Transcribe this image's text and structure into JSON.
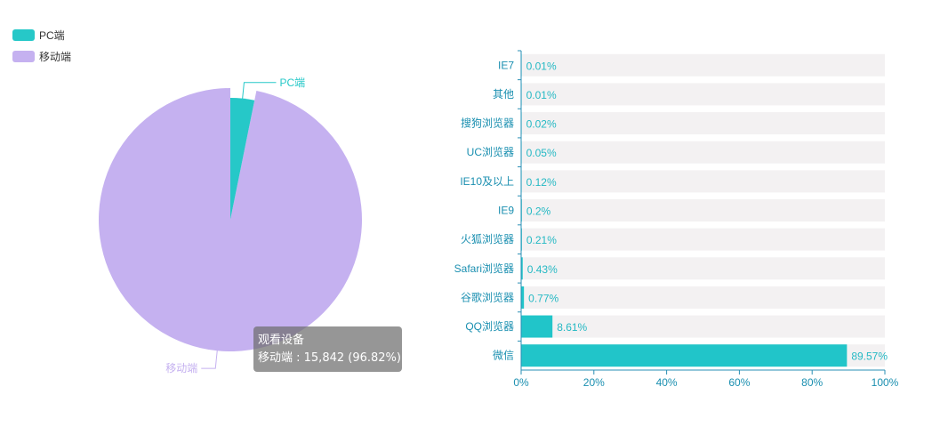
{
  "colors": {
    "pc": "#26c8c8",
    "mobile": "#c5b1f0",
    "bar": "#21c5c9",
    "bar_track": "#f3f1f2",
    "axis": "#2a8fb5",
    "category_text": "#1a8fb0",
    "value_text": "#25b9c4"
  },
  "legend": [
    {
      "label": "PC端",
      "color": "#26c8c8"
    },
    {
      "label": "移动端",
      "color": "#c5b1f0"
    }
  ],
  "tooltip": {
    "title": "观看设备",
    "line": "移动端 : 15,842 (96.82%)"
  },
  "chart_data": [
    {
      "type": "pie",
      "series": [
        {
          "name": "PC端",
          "percent": 3.18
        },
        {
          "name": "移动端",
          "value": 15842,
          "percent": 96.82
        }
      ],
      "slice_labels": [
        "PC端",
        "移动端"
      ],
      "highlighted": "移动端"
    },
    {
      "type": "bar",
      "orientation": "horizontal",
      "categories": [
        "IE7",
        "其他",
        "搜狗浏览器",
        "UC浏览器",
        "IE10及以上",
        "IE9",
        "火狐浏览器",
        "Safari浏览器",
        "谷歌浏览器",
        "QQ浏览器",
        "微信"
      ],
      "values": [
        0.01,
        0.01,
        0.02,
        0.05,
        0.12,
        0.2,
        0.21,
        0.43,
        0.77,
        8.61,
        89.57
      ],
      "value_labels": [
        "0.01%",
        "0.01%",
        "0.02%",
        "0.05%",
        "0.12%",
        "0.2%",
        "0.21%",
        "0.43%",
        "0.77%",
        "8.61%",
        "89.57%"
      ],
      "xlim": [
        0,
        100
      ],
      "x_ticks": [
        "0%",
        "20%",
        "40%",
        "60%",
        "80%",
        "100%"
      ],
      "background_bars": true
    }
  ]
}
